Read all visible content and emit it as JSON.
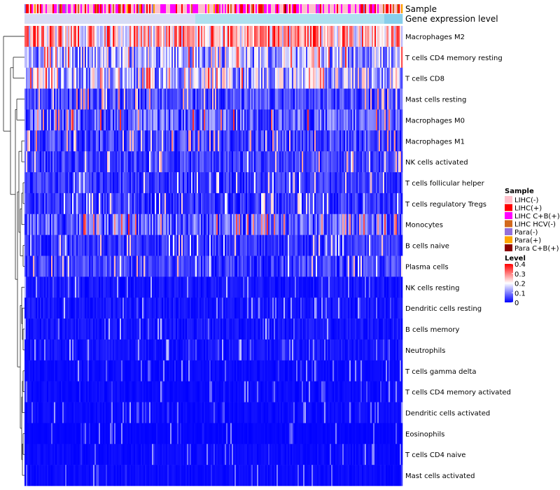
{
  "chart_data": {
    "type": "heatmap",
    "annotation_rows": [
      "Sample",
      "Gene expression level"
    ],
    "rows": [
      {
        "label": "Macrophages M2",
        "mean": 0.26
      },
      {
        "label": "T cells CD4 memory resting",
        "mean": 0.13
      },
      {
        "label": "T cells CD8",
        "mean": 0.15
      },
      {
        "label": "Mast cells resting",
        "mean": 0.07
      },
      {
        "label": "Macrophages M0",
        "mean": 0.09
      },
      {
        "label": "Macrophages M1",
        "mean": 0.07
      },
      {
        "label": "NK cells activated",
        "mean": 0.06
      },
      {
        "label": "T cells follicular helper",
        "mean": 0.05
      },
      {
        "label": "T cells regulatory  Tregs",
        "mean": 0.05
      },
      {
        "label": "Monocytes",
        "mean": 0.09
      },
      {
        "label": "B cells naive",
        "mean": 0.05
      },
      {
        "label": "Plasma cells",
        "mean": 0.06
      },
      {
        "label": "NK cells resting",
        "mean": 0.02
      },
      {
        "label": "Dendritic cells resting",
        "mean": 0.02
      },
      {
        "label": "B cells memory",
        "mean": 0.02
      },
      {
        "label": "Neutrophils",
        "mean": 0.02
      },
      {
        "label": "T cells gamma delta",
        "mean": 0.01
      },
      {
        "label": "T cells CD4 memory activated",
        "mean": 0.01
      },
      {
        "label": "Dendritic cells activated",
        "mean": 0.01
      },
      {
        "label": "Eosinophils",
        "mean": 0.005
      },
      {
        "label": "T cells CD4 naive",
        "mean": 0.01
      },
      {
        "label": "Mast cells activated",
        "mean": 0.01
      }
    ],
    "legend_sample": {
      "title": "Sample",
      "items": [
        {
          "label": "LIHC(-)",
          "color": "#ffc0cb"
        },
        {
          "label": "LIHC(+)",
          "color": "#ff0000"
        },
        {
          "label": "LIHC C+B(+)",
          "color": "#ff00ff"
        },
        {
          "label": "LIHC HCV(-)",
          "color": "#d2691e"
        },
        {
          "label": "Para(-)",
          "color": "#9370db"
        },
        {
          "label": "Para(+)",
          "color": "#ffa500"
        },
        {
          "label": "Para C+B(+)",
          "color": "#8b0000"
        }
      ]
    },
    "legend_level": {
      "title": "Level",
      "ticks": [
        "0.4",
        "0.3",
        "0.2",
        "0.1",
        "0"
      ],
      "range": [
        0,
        0.4
      ]
    },
    "colors": {
      "low": "#0000ff",
      "mid": "#ffffff",
      "high": "#ff0000",
      "expression_bar": "#87ceeb"
    }
  }
}
